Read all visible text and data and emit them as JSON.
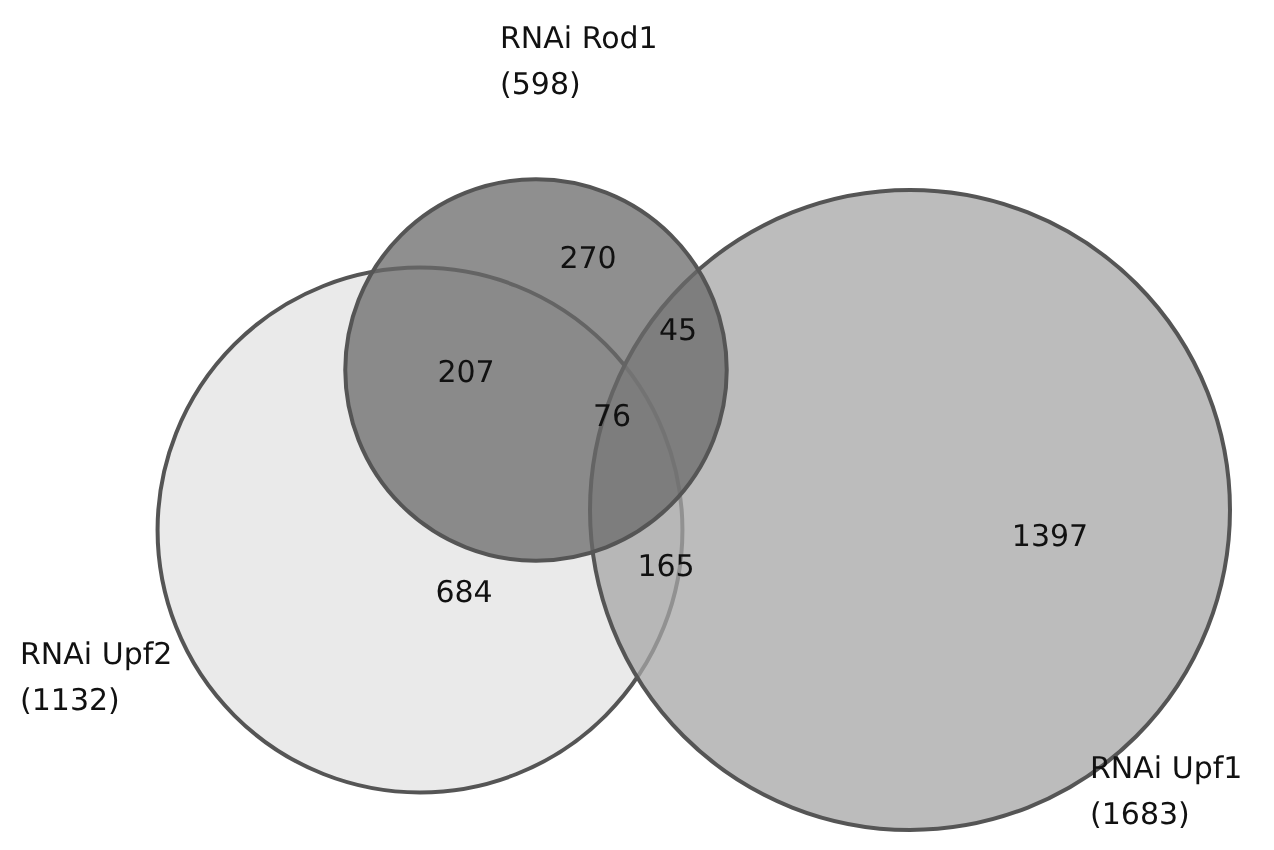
{
  "chart_data": {
    "type": "other",
    "categories": [
      "RNAi Upf2",
      "RNAi Upf1",
      "RNAi Rod1"
    ],
    "values": [
      1132,
      1683,
      598
    ],
    "value_labels": [
      "(1132)",
      "(1683)",
      "(598)"
    ],
    "colors": [
      "#e3e3e3",
      "#a6a6a6",
      "#6a6a6a"
    ],
    "annotations": [
      "270",
      "207",
      "45",
      "76",
      "684",
      "165",
      "1397"
    ]
  }
}
